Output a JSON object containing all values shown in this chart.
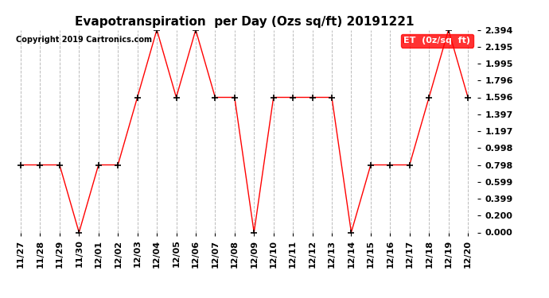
{
  "title": "Evapotranspiration  per Day (Ozs sq/ft) 20191221",
  "copyright": "Copyright 2019 Cartronics.com",
  "legend_label": "ET  (0z/sq  ft)",
  "dates": [
    "11/27",
    "11/28",
    "11/29",
    "11/30",
    "12/01",
    "12/02",
    "12/03",
    "12/04",
    "12/05",
    "12/06",
    "12/07",
    "12/08",
    "12/09",
    "12/10",
    "12/11",
    "12/12",
    "12/13",
    "12/14",
    "12/15",
    "12/16",
    "12/17",
    "12/18",
    "12/19",
    "12/20"
  ],
  "values": [
    0.798,
    0.798,
    0.798,
    0.0,
    0.798,
    0.798,
    1.596,
    2.394,
    1.596,
    2.394,
    1.596,
    1.596,
    0.0,
    1.596,
    1.596,
    1.596,
    1.596,
    0.0,
    0.798,
    0.798,
    0.798,
    1.596,
    2.394,
    1.596
  ],
  "line_color": "red",
  "marker": "+",
  "marker_color": "black",
  "marker_size": 6,
  "background_color": "#ffffff",
  "plot_background": "#ffffff",
  "grid_color": "#bbbbbb",
  "grid_style": "--",
  "ylim": [
    0.0,
    2.394
  ],
  "yticks": [
    0.0,
    0.2,
    0.399,
    0.599,
    0.798,
    0.998,
    1.197,
    1.397,
    1.596,
    1.796,
    1.995,
    2.195,
    2.394
  ],
  "title_fontsize": 11,
  "tick_fontsize": 8,
  "copyright_fontsize": 7,
  "legend_bg": "red",
  "legend_text_color": "white",
  "legend_fontsize": 8
}
